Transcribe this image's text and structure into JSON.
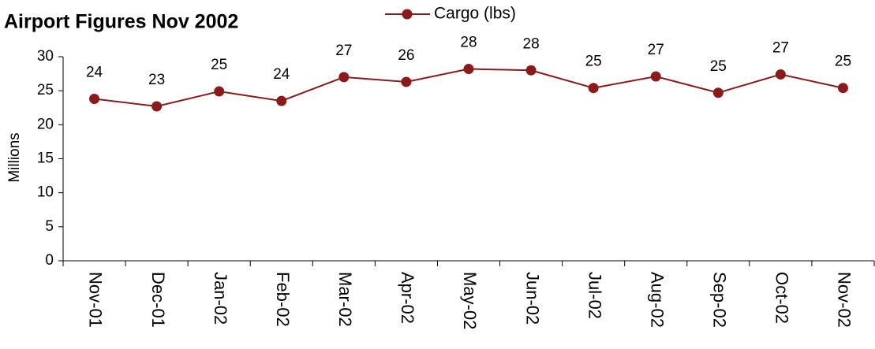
{
  "chart_data": {
    "type": "line",
    "title": "Airport Figures Nov 2002",
    "ylabel": "Millions",
    "categories": [
      "Nov-01",
      "Dec-01",
      "Jan-02",
      "Feb-02",
      "Mar-02",
      "Apr-02",
      "May-02",
      "Jun-02",
      "Jul-02",
      "Aug-02",
      "Sep-02",
      "Oct-02",
      "Nov-02"
    ],
    "series": [
      {
        "name": "Cargo (lbs)",
        "color": "#8b1a1a",
        "values": [
          23.8,
          22.7,
          24.9,
          23.5,
          27.0,
          26.3,
          28.2,
          28.0,
          25.4,
          27.1,
          24.7,
          27.4,
          25.4
        ],
        "value_labels": [
          "24",
          "23",
          "25",
          "24",
          "27",
          "26",
          "28",
          "28",
          "25",
          "27",
          "25",
          "27",
          "25"
        ]
      }
    ],
    "ylim": [
      0,
      30
    ],
    "yticks": [
      0,
      5,
      10,
      15,
      20,
      25,
      30
    ],
    "legend": "top"
  }
}
